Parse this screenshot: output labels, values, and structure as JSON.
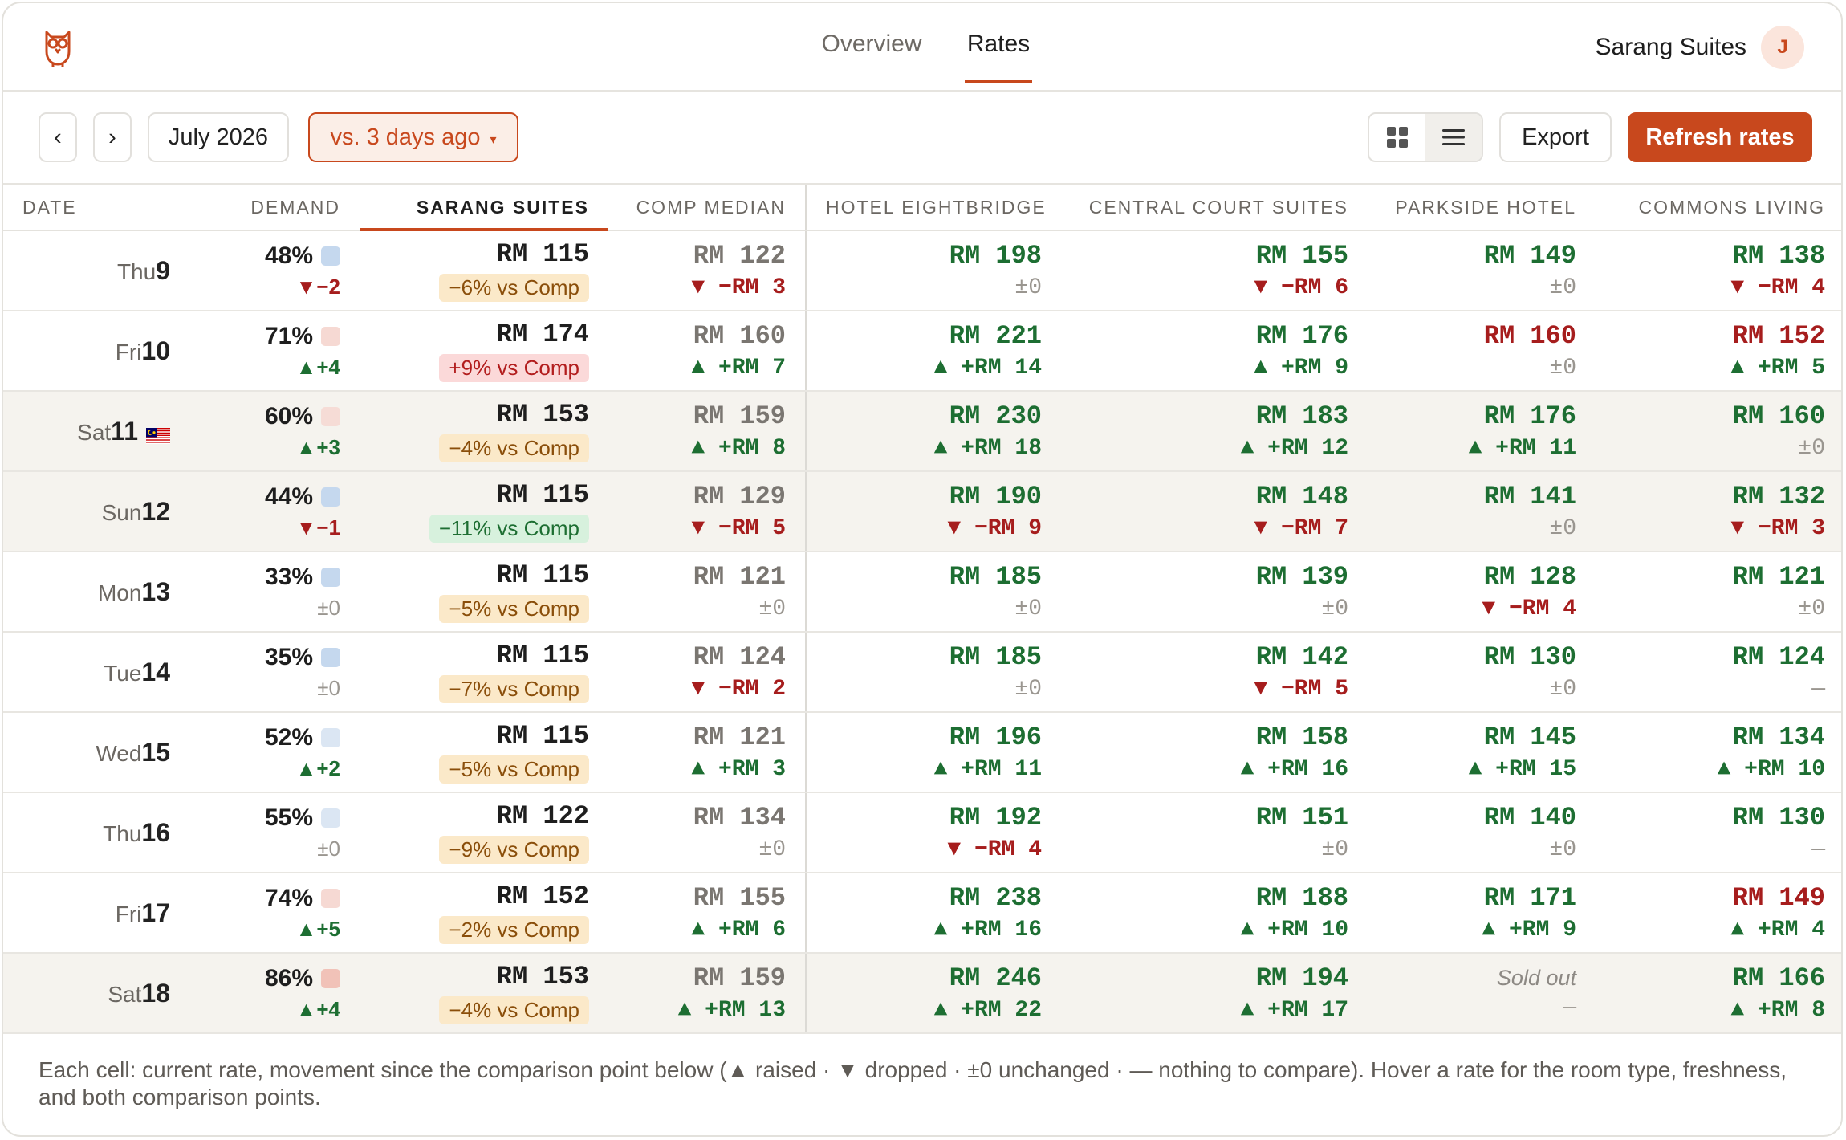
{
  "header": {
    "tabs": [
      {
        "label": "Overview",
        "active": false
      },
      {
        "label": "Rates",
        "active": true
      }
    ],
    "hotel_name": "Sarang Suites",
    "avatar_initial": "J",
    "logo_icon": "owl-icon"
  },
  "toolbar": {
    "prev_label": "‹",
    "next_label": "›",
    "month": "July 2026",
    "compare_label": "vs. 3 days ago",
    "compare_caret": "▾",
    "export_label": "Export",
    "refresh_label": "Refresh rates",
    "view_modes": [
      {
        "icon": "grid-view-icon",
        "active": false
      },
      {
        "icon": "list-view-icon",
        "active": true
      }
    ]
  },
  "table": {
    "headers": {
      "date": "DATE",
      "demand": "DEMAND",
      "own": "SARANG SUITES",
      "median": "COMP MEDIAN",
      "comp": [
        "HOTEL EIGHTBRIDGE",
        "CENTRAL COURT SUITES",
        "PARKSIDE HOTEL",
        "COMMONS LIVING"
      ]
    },
    "rows": [
      {
        "dow": "Thu",
        "day": "9",
        "weekend": false,
        "holiday": false,
        "demand": "48%",
        "demand_color": "#c5d8ee",
        "demand_delta": "▼−2",
        "demand_dir": "down",
        "own_rate": "RM 115",
        "own_pill": "−6% vs Comp",
        "own_pill_tone": "warn",
        "median_rate": "RM 122",
        "median_move": "▼ −RM 3",
        "median_dir": "down",
        "comps": [
          {
            "rate": "RM 198",
            "tone": "green",
            "move": "±0",
            "dir": "neutral"
          },
          {
            "rate": "RM 155",
            "tone": "green",
            "move": "▼ −RM 6",
            "dir": "down"
          },
          {
            "rate": "RM 149",
            "tone": "green",
            "move": "±0",
            "dir": "neutral"
          },
          {
            "rate": "RM 138",
            "tone": "green",
            "move": "▼ −RM 4",
            "dir": "down"
          }
        ]
      },
      {
        "dow": "Fri",
        "day": "10",
        "weekend": false,
        "holiday": false,
        "demand": "71%",
        "demand_color": "#f6d9d3",
        "demand_delta": "▲+4",
        "demand_dir": "up",
        "own_rate": "RM 174",
        "own_pill": "+9% vs Comp",
        "own_pill_tone": "bad",
        "median_rate": "RM 160",
        "median_move": "▲ +RM 7",
        "median_dir": "up",
        "comps": [
          {
            "rate": "RM 221",
            "tone": "green",
            "move": "▲ +RM 14",
            "dir": "up"
          },
          {
            "rate": "RM 176",
            "tone": "green",
            "move": "▲ +RM 9",
            "dir": "up"
          },
          {
            "rate": "RM 160",
            "tone": "red",
            "move": "±0",
            "dir": "neutral"
          },
          {
            "rate": "RM 152",
            "tone": "red",
            "move": "▲ +RM 5",
            "dir": "up"
          }
        ]
      },
      {
        "dow": "Sat",
        "day": "11",
        "weekend": true,
        "holiday": true,
        "demand": "60%",
        "demand_color": "#f6dcd6",
        "demand_delta": "▲+3",
        "demand_dir": "up",
        "own_rate": "RM 153",
        "own_pill": "−4% vs Comp",
        "own_pill_tone": "warn",
        "median_rate": "RM 159",
        "median_move": "▲ +RM 8",
        "median_dir": "up",
        "comps": [
          {
            "rate": "RM 230",
            "tone": "green",
            "move": "▲ +RM 18",
            "dir": "up"
          },
          {
            "rate": "RM 183",
            "tone": "green",
            "move": "▲ +RM 12",
            "dir": "up"
          },
          {
            "rate": "RM 176",
            "tone": "green",
            "move": "▲ +RM 11",
            "dir": "up"
          },
          {
            "rate": "RM 160",
            "tone": "green",
            "move": "±0",
            "dir": "neutral"
          }
        ]
      },
      {
        "dow": "Sun",
        "day": "12",
        "weekend": true,
        "holiday": false,
        "demand": "44%",
        "demand_color": "#c5d8ee",
        "demand_delta": "▼−1",
        "demand_dir": "down",
        "own_rate": "RM 115",
        "own_pill": "−11% vs Comp",
        "own_pill_tone": "good",
        "median_rate": "RM 129",
        "median_move": "▼ −RM 5",
        "median_dir": "down",
        "comps": [
          {
            "rate": "RM 190",
            "tone": "green",
            "move": "▼ −RM 9",
            "dir": "down"
          },
          {
            "rate": "RM 148",
            "tone": "green",
            "move": "▼ −RM 7",
            "dir": "down"
          },
          {
            "rate": "RM 141",
            "tone": "green",
            "move": "±0",
            "dir": "neutral"
          },
          {
            "rate": "RM 132",
            "tone": "green",
            "move": "▼ −RM 3",
            "dir": "down"
          }
        ]
      },
      {
        "dow": "Mon",
        "day": "13",
        "weekend": false,
        "holiday": false,
        "demand": "33%",
        "demand_color": "#c5d8ee",
        "demand_delta": "±0",
        "demand_dir": "neutral",
        "own_rate": "RM 115",
        "own_pill": "−5% vs Comp",
        "own_pill_tone": "warn",
        "median_rate": "RM 121",
        "median_move": "±0",
        "median_dir": "neutral",
        "comps": [
          {
            "rate": "RM 185",
            "tone": "green",
            "move": "±0",
            "dir": "neutral"
          },
          {
            "rate": "RM 139",
            "tone": "green",
            "move": "±0",
            "dir": "neutral"
          },
          {
            "rate": "RM 128",
            "tone": "green",
            "move": "▼ −RM 4",
            "dir": "down"
          },
          {
            "rate": "RM 121",
            "tone": "green",
            "move": "±0",
            "dir": "neutral"
          }
        ]
      },
      {
        "dow": "Tue",
        "day": "14",
        "weekend": false,
        "holiday": false,
        "demand": "35%",
        "demand_color": "#c5d8ee",
        "demand_delta": "±0",
        "demand_dir": "neutral",
        "own_rate": "RM 115",
        "own_pill": "−7% vs Comp",
        "own_pill_tone": "warn",
        "median_rate": "RM 124",
        "median_move": "▼ −RM 2",
        "median_dir": "down",
        "comps": [
          {
            "rate": "RM 185",
            "tone": "green",
            "move": "±0",
            "dir": "neutral"
          },
          {
            "rate": "RM 142",
            "tone": "green",
            "move": "▼ −RM 5",
            "dir": "down"
          },
          {
            "rate": "RM 130",
            "tone": "green",
            "move": "±0",
            "dir": "neutral"
          },
          {
            "rate": "RM 124",
            "tone": "green",
            "move": "—",
            "dir": "neutral"
          }
        ]
      },
      {
        "dow": "Wed",
        "day": "15",
        "weekend": false,
        "holiday": false,
        "demand": "52%",
        "demand_color": "#dbe6f3",
        "demand_delta": "▲+2",
        "demand_dir": "up",
        "own_rate": "RM 115",
        "own_pill": "−5% vs Comp",
        "own_pill_tone": "warn",
        "median_rate": "RM 121",
        "median_move": "▲ +RM 3",
        "median_dir": "up",
        "comps": [
          {
            "rate": "RM 196",
            "tone": "green",
            "move": "▲ +RM 11",
            "dir": "up"
          },
          {
            "rate": "RM 158",
            "tone": "green",
            "move": "▲ +RM 16",
            "dir": "up"
          },
          {
            "rate": "RM 145",
            "tone": "green",
            "move": "▲ +RM 15",
            "dir": "up"
          },
          {
            "rate": "RM 134",
            "tone": "green",
            "move": "▲ +RM 10",
            "dir": "up"
          }
        ]
      },
      {
        "dow": "Thu",
        "day": "16",
        "weekend": false,
        "holiday": false,
        "demand": "55%",
        "demand_color": "#dbe6f3",
        "demand_delta": "±0",
        "demand_dir": "neutral",
        "own_rate": "RM 122",
        "own_pill": "−9% vs Comp",
        "own_pill_tone": "warn",
        "median_rate": "RM 134",
        "median_move": "±0",
        "median_dir": "neutral",
        "comps": [
          {
            "rate": "RM 192",
            "tone": "green",
            "move": "▼ −RM 4",
            "dir": "down"
          },
          {
            "rate": "RM 151",
            "tone": "green",
            "move": "±0",
            "dir": "neutral"
          },
          {
            "rate": "RM 140",
            "tone": "green",
            "move": "±0",
            "dir": "neutral"
          },
          {
            "rate": "RM 130",
            "tone": "green",
            "move": "—",
            "dir": "neutral"
          }
        ]
      },
      {
        "dow": "Fri",
        "day": "17",
        "weekend": false,
        "holiday": false,
        "demand": "74%",
        "demand_color": "#f6d9d3",
        "demand_delta": "▲+5",
        "demand_dir": "up",
        "own_rate": "RM 152",
        "own_pill": "−2% vs Comp",
        "own_pill_tone": "warn",
        "median_rate": "RM 155",
        "median_move": "▲ +RM 6",
        "median_dir": "up",
        "comps": [
          {
            "rate": "RM 238",
            "tone": "green",
            "move": "▲ +RM 16",
            "dir": "up"
          },
          {
            "rate": "RM 188",
            "tone": "green",
            "move": "▲ +RM 10",
            "dir": "up"
          },
          {
            "rate": "RM 171",
            "tone": "green",
            "move": "▲ +RM 9",
            "dir": "up"
          },
          {
            "rate": "RM 149",
            "tone": "red",
            "move": "▲ +RM 4",
            "dir": "up"
          }
        ]
      },
      {
        "dow": "Sat",
        "day": "18",
        "weekend": true,
        "holiday": false,
        "demand": "86%",
        "demand_color": "#f1c2b8",
        "demand_delta": "▲+4",
        "demand_dir": "up",
        "own_rate": "RM 153",
        "own_pill": "−4% vs Comp",
        "own_pill_tone": "warn",
        "median_rate": "RM 159",
        "median_move": "▲ +RM 13",
        "median_dir": "up",
        "comps": [
          {
            "rate": "RM 246",
            "tone": "green",
            "move": "▲ +RM 22",
            "dir": "up"
          },
          {
            "rate": "RM 194",
            "tone": "green",
            "move": "▲ +RM 17",
            "dir": "up"
          },
          {
            "rate": "Sold out",
            "tone": "soldout",
            "move": "—",
            "dir": "neutral"
          },
          {
            "rate": "RM 166",
            "tone": "green",
            "move": "▲ +RM 8",
            "dir": "up"
          }
        ]
      }
    ]
  },
  "footer_note": "Each cell: current rate, movement since the comparison point below (▲ raised · ▼ dropped · ±0 unchanged · — nothing to compare). Hover a rate for the room type, freshness, and both comparison points.",
  "colors": {
    "accent": "#c8481d",
    "up": "#1d6e32",
    "down": "#a61d1d",
    "weekend_bg": "#f5f3ee"
  }
}
